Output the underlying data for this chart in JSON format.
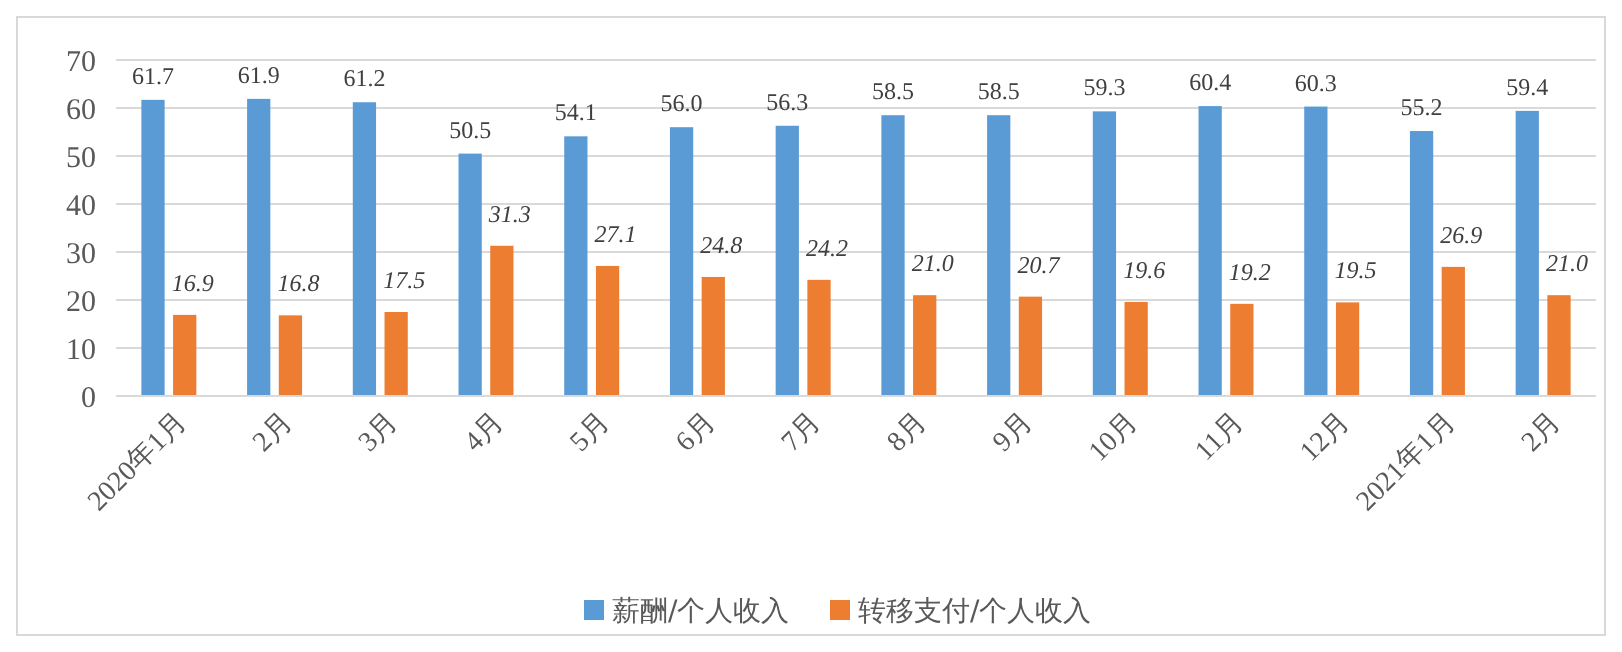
{
  "chart_data": {
    "type": "bar",
    "categories": [
      "2020年1月",
      "2月",
      "3月",
      "4月",
      "5月",
      "6月",
      "7月",
      "8月",
      "9月",
      "10月",
      "11月",
      "12月",
      "2021年1月",
      "2月"
    ],
    "series": [
      {
        "name": "薪酬/个人收入",
        "color": "#5b9bd5",
        "values": [
          61.7,
          61.9,
          61.2,
          50.5,
          54.1,
          56.0,
          56.3,
          58.5,
          58.5,
          59.3,
          60.4,
          60.3,
          55.2,
          59.4
        ],
        "value_labels": [
          "61.7",
          "61.9",
          "61.2",
          "50.5",
          "54.1",
          "56.0",
          "56.3",
          "58.5",
          "58.5",
          "59.3",
          "60.4",
          "60.3",
          "55.2",
          "59.4"
        ]
      },
      {
        "name": "转移支付/个人收入",
        "color": "#ed7d31",
        "values": [
          16.9,
          16.8,
          17.5,
          31.3,
          27.1,
          24.8,
          24.2,
          21.0,
          20.7,
          19.6,
          19.2,
          19.5,
          26.9,
          21.0
        ],
        "value_labels": [
          "16.9",
          "16.8",
          "17.5",
          "31.3",
          "27.1",
          "24.8",
          "24.2",
          "21.0",
          "20.7",
          "19.6",
          "19.2",
          "19.5",
          "26.9",
          "21.0"
        ]
      }
    ],
    "ylim": [
      0,
      70
    ],
    "yticks": [
      0,
      10,
      20,
      30,
      40,
      50,
      60,
      70
    ],
    "grid": "y",
    "legend": "bottom"
  }
}
